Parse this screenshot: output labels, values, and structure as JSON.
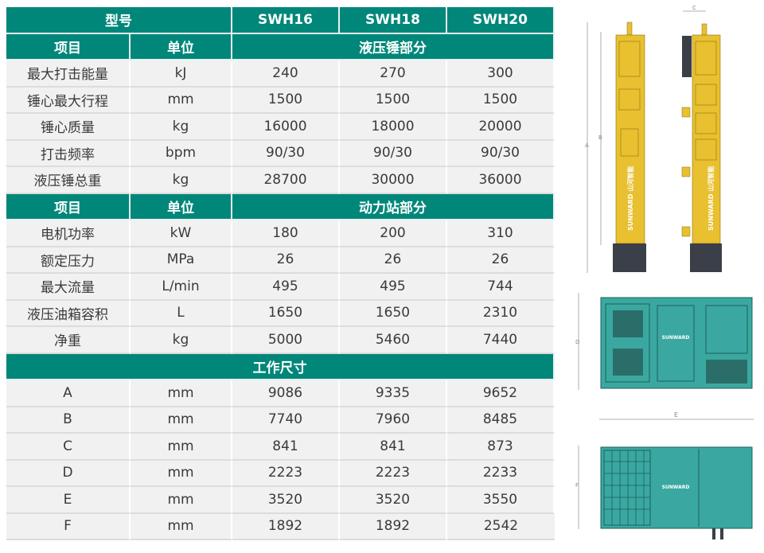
{
  "table": {
    "model_label": "型号",
    "models": [
      "SWH16",
      "SWH18",
      "SWH20"
    ],
    "sections": [
      {
        "header": [
          "项目",
          "单位",
          "液压锤部分"
        ],
        "rows": [
          [
            "最大打击能量",
            "kJ",
            "240",
            "270",
            "300"
          ],
          [
            "锤心最大行程",
            "mm",
            "1500",
            "1500",
            "1500"
          ],
          [
            "锤心质量",
            "kg",
            "16000",
            "18000",
            "20000"
          ],
          [
            "打击频率",
            "bpm",
            "90/30",
            "90/30",
            "90/30"
          ],
          [
            "液压锤总重",
            "kg",
            "28700",
            "30000",
            "36000"
          ]
        ]
      },
      {
        "header": [
          "项目",
          "单位",
          "动力站部分"
        ],
        "rows": [
          [
            "电机功率",
            "kW",
            "180",
            "200",
            "310"
          ],
          [
            "额定压力",
            "MPa",
            "26",
            "26",
            "26"
          ],
          [
            "最大流量",
            "L/min",
            "495",
            "495",
            "744"
          ],
          [
            "液压油箱容积",
            "L",
            "1650",
            "1650",
            "2310"
          ],
          [
            "净重",
            "kg",
            "5000",
            "5460",
            "7440"
          ]
        ]
      },
      {
        "header": [
          "工作尺寸"
        ],
        "rows": [
          [
            "A",
            "mm",
            "9086",
            "9335",
            "9652"
          ],
          [
            "B",
            "mm",
            "7740",
            "7960",
            "8485"
          ],
          [
            "C",
            "mm",
            "841",
            "841",
            "873"
          ],
          [
            "D",
            "mm",
            "2223",
            "2223",
            "2233"
          ],
          [
            "E",
            "mm",
            "3520",
            "3520",
            "3550"
          ],
          [
            "F",
            "mm",
            "1892",
            "1892",
            "2542"
          ]
        ]
      }
    ]
  },
  "drawings": {
    "brand": "SUNWARD",
    "brand_cn": "山河智能",
    "dims": {
      "A": "A",
      "B": "B",
      "C": "C",
      "D": "D",
      "E": "E",
      "F": "F"
    },
    "colors": {
      "header": "#00877a",
      "hammer": "#e8c030",
      "powerpack": "#3aa8a0"
    }
  }
}
